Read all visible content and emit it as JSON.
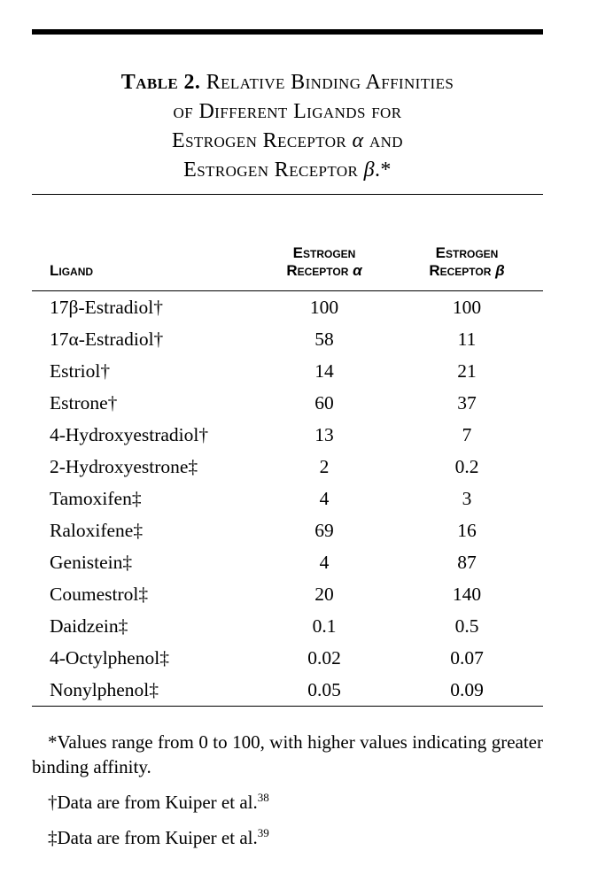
{
  "title": {
    "label": "Table 2.",
    "line1_rest": "Relative Binding Affinities",
    "line2": "of Different Ligands for",
    "line3a": "Estrogen Receptor",
    "line3_sym": "α",
    "line3c": "and",
    "line4a": "Estrogen Receptor",
    "line4_sym": "β",
    "line4c": ".*"
  },
  "header": {
    "ligand": "Ligand",
    "alpha_col": {
      "line1": "Estrogen",
      "line2": "Receptor",
      "symbol": "α"
    },
    "beta_col": {
      "line1": "Estrogen",
      "line2": "Receptor",
      "symbol": "β"
    }
  },
  "table": {
    "rows": [
      {
        "ligand": "17β-Estradiol†",
        "alpha": "100",
        "beta": "100"
      },
      {
        "ligand": "17α-Estradiol†",
        "alpha": "58",
        "beta": "11"
      },
      {
        "ligand": "Estriol†",
        "alpha": "14",
        "beta": "21"
      },
      {
        "ligand": "Estrone†",
        "alpha": "60",
        "beta": "37"
      },
      {
        "ligand": "4-Hydroxyestradiol†",
        "alpha": "13",
        "beta": "7"
      },
      {
        "ligand": "2-Hydroxyestrone‡",
        "alpha": "2",
        "beta": "0.2"
      },
      {
        "ligand": "Tamoxifen‡",
        "alpha": "4",
        "beta": "3"
      },
      {
        "ligand": "Raloxifene‡",
        "alpha": "69",
        "beta": "16"
      },
      {
        "ligand": "Genistein‡",
        "alpha": "4",
        "beta": "87"
      },
      {
        "ligand": "Coumestrol‡",
        "alpha": "20",
        "beta": "140"
      },
      {
        "ligand": "Daidzein‡",
        "alpha": "0.1",
        "beta": "0.5"
      },
      {
        "ligand": "4-Octylphenol‡",
        "alpha": "0.02",
        "beta": "0.07"
      },
      {
        "ligand": "Nonylphenol‡",
        "alpha": "0.05",
        "beta": "0.09"
      }
    ]
  },
  "footnotes": [
    {
      "marker": "*",
      "text": "Values range from 0 to 100, with higher values indicating greater binding affinity.",
      "sup": ""
    },
    {
      "marker": "†",
      "text": "Data are from Kuiper et al.",
      "sup": "38"
    },
    {
      "marker": "‡",
      "text": "Data are from Kuiper et al.",
      "sup": "39"
    }
  ],
  "colors": {
    "ink": "#000000",
    "paper": "#ffffff"
  }
}
